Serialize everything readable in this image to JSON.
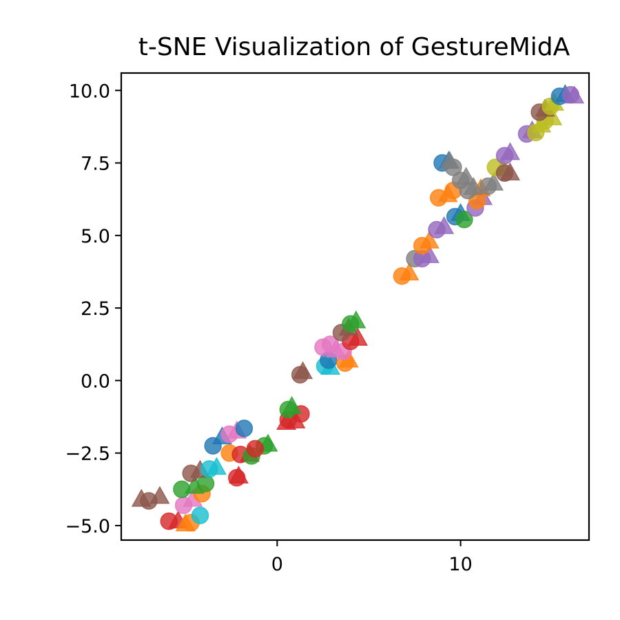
{
  "chart_data": {
    "type": "scatter",
    "title": "t-SNE Visualization of GestureMidA",
    "xlabel": "",
    "ylabel": "",
    "xlim": [
      -8.5,
      17.0
    ],
    "ylim": [
      -5.5,
      10.6
    ],
    "xticks": [
      {
        "value": 0,
        "label": "0"
      },
      {
        "value": 10,
        "label": "10"
      }
    ],
    "yticks": [
      {
        "value": -5.0,
        "label": "−5.0"
      },
      {
        "value": -2.5,
        "label": "−2.5"
      },
      {
        "value": 0.0,
        "label": "0.0"
      },
      {
        "value": 2.5,
        "label": "2.5"
      },
      {
        "value": 5.0,
        "label": "5.0"
      },
      {
        "value": 7.5,
        "label": "7.5"
      },
      {
        "value": 10.0,
        "label": "10.0"
      }
    ],
    "grid": false,
    "legend": "none",
    "marker_alpha": 0.8,
    "palette": [
      "#1f77b4",
      "#ff7f0e",
      "#2ca02c",
      "#d62728",
      "#9467bd",
      "#8c564b",
      "#e377c2",
      "#7f7f7f",
      "#bcbd22",
      "#17becf"
    ],
    "points": [
      {
        "x": -7.4,
        "y": -4.1,
        "c": 5,
        "m": "tri"
      },
      {
        "x": -7.0,
        "y": -4.15,
        "c": 5,
        "m": "circle"
      },
      {
        "x": -6.4,
        "y": -4.0,
        "c": 5,
        "m": "tri"
      },
      {
        "x": -5.4,
        "y": -4.85,
        "c": 3,
        "m": "tri"
      },
      {
        "x": -5.9,
        "y": -4.85,
        "c": 3,
        "m": "circle"
      },
      {
        "x": -5.0,
        "y": -4.95,
        "c": 1,
        "m": "tri"
      },
      {
        "x": -4.7,
        "y": -4.9,
        "c": 1,
        "m": "circle"
      },
      {
        "x": -4.2,
        "y": -4.65,
        "c": 9,
        "m": "circle"
      },
      {
        "x": -5.1,
        "y": -4.3,
        "c": 6,
        "m": "circle"
      },
      {
        "x": -4.6,
        "y": -4.1,
        "c": 6,
        "m": "tri"
      },
      {
        "x": -4.1,
        "y": -3.9,
        "c": 1,
        "m": "circle"
      },
      {
        "x": -5.2,
        "y": -3.75,
        "c": 2,
        "m": "circle"
      },
      {
        "x": -4.5,
        "y": -3.65,
        "c": 2,
        "m": "tri"
      },
      {
        "x": -3.9,
        "y": -3.55,
        "c": 2,
        "m": "circle"
      },
      {
        "x": -4.7,
        "y": -3.2,
        "c": 5,
        "m": "circle"
      },
      {
        "x": -4.2,
        "y": -3.1,
        "c": 5,
        "m": "tri"
      },
      {
        "x": -3.7,
        "y": -3.05,
        "c": 9,
        "m": "circle"
      },
      {
        "x": -3.3,
        "y": -3.0,
        "c": 9,
        "m": "tri"
      },
      {
        "x": -2.2,
        "y": -3.35,
        "c": 3,
        "m": "circle"
      },
      {
        "x": -2.1,
        "y": -3.3,
        "c": 3,
        "m": "tri"
      },
      {
        "x": -2.6,
        "y": -2.5,
        "c": 1,
        "m": "circle"
      },
      {
        "x": -2.0,
        "y": -2.55,
        "c": 3,
        "m": "circle"
      },
      {
        "x": -1.5,
        "y": -2.55,
        "c": 3,
        "m": "tri"
      },
      {
        "x": -1.4,
        "y": -2.6,
        "c": 2,
        "m": "circle"
      },
      {
        "x": -0.7,
        "y": -2.25,
        "c": 2,
        "m": "circle"
      },
      {
        "x": -0.5,
        "y": -2.2,
        "c": 2,
        "m": "tri"
      },
      {
        "x": -1.2,
        "y": -2.35,
        "c": 3,
        "m": "circle"
      },
      {
        "x": -3.5,
        "y": -2.25,
        "c": 0,
        "m": "circle"
      },
      {
        "x": -3.0,
        "y": -1.95,
        "c": 0,
        "m": "tri"
      },
      {
        "x": -2.6,
        "y": -1.85,
        "c": 6,
        "m": "circle"
      },
      {
        "x": -2.2,
        "y": -1.75,
        "c": 6,
        "m": "tri"
      },
      {
        "x": -1.8,
        "y": -1.65,
        "c": 0,
        "m": "circle"
      },
      {
        "x": 0.5,
        "y": -1.45,
        "c": 3,
        "m": "tri"
      },
      {
        "x": 0.6,
        "y": -1.35,
        "c": 3,
        "m": "circle"
      },
      {
        "x": 1.0,
        "y": -1.4,
        "c": 3,
        "m": "tri"
      },
      {
        "x": 1.3,
        "y": -1.15,
        "c": 3,
        "m": "circle"
      },
      {
        "x": 0.6,
        "y": -1.0,
        "c": 2,
        "m": "circle"
      },
      {
        "x": 0.8,
        "y": -0.9,
        "c": 2,
        "m": "tri"
      },
      {
        "x": 1.25,
        "y": 0.2,
        "c": 5,
        "m": "circle"
      },
      {
        "x": 1.4,
        "y": 0.3,
        "c": 5,
        "m": "tri"
      },
      {
        "x": 2.6,
        "y": 0.5,
        "c": 9,
        "m": "circle"
      },
      {
        "x": 2.9,
        "y": 0.45,
        "c": 9,
        "m": "tri"
      },
      {
        "x": 2.8,
        "y": 0.7,
        "c": 0,
        "m": "circle"
      },
      {
        "x": 3.7,
        "y": 0.6,
        "c": 1,
        "m": "circle"
      },
      {
        "x": 3.9,
        "y": 0.7,
        "c": 1,
        "m": "tri"
      },
      {
        "x": 2.5,
        "y": 1.15,
        "c": 6,
        "m": "circle"
      },
      {
        "x": 2.9,
        "y": 1.25,
        "c": 6,
        "m": "circle"
      },
      {
        "x": 3.2,
        "y": 1.05,
        "c": 6,
        "m": "tri"
      },
      {
        "x": 3.6,
        "y": 1.0,
        "c": 6,
        "m": "circle"
      },
      {
        "x": 4.0,
        "y": 1.35,
        "c": 3,
        "m": "circle"
      },
      {
        "x": 4.4,
        "y": 1.45,
        "c": 3,
        "m": "tri"
      },
      {
        "x": 3.5,
        "y": 1.65,
        "c": 5,
        "m": "circle"
      },
      {
        "x": 3.9,
        "y": 1.8,
        "c": 5,
        "m": "tri"
      },
      {
        "x": 4.0,
        "y": 1.95,
        "c": 2,
        "m": "circle"
      },
      {
        "x": 4.3,
        "y": 2.05,
        "c": 2,
        "m": "tri"
      },
      {
        "x": 6.8,
        "y": 3.6,
        "c": 1,
        "m": "circle"
      },
      {
        "x": 7.2,
        "y": 3.7,
        "c": 1,
        "m": "tri"
      },
      {
        "x": 7.5,
        "y": 4.2,
        "c": 7,
        "m": "circle"
      },
      {
        "x": 7.9,
        "y": 4.2,
        "c": 4,
        "m": "circle"
      },
      {
        "x": 8.3,
        "y": 4.3,
        "c": 4,
        "m": "tri"
      },
      {
        "x": 7.9,
        "y": 4.65,
        "c": 1,
        "m": "circle"
      },
      {
        "x": 8.3,
        "y": 4.8,
        "c": 1,
        "m": "tri"
      },
      {
        "x": 8.7,
        "y": 5.2,
        "c": 4,
        "m": "circle"
      },
      {
        "x": 9.1,
        "y": 5.3,
        "c": 4,
        "m": "tri"
      },
      {
        "x": 9.7,
        "y": 5.65,
        "c": 0,
        "m": "circle"
      },
      {
        "x": 10.0,
        "y": 5.75,
        "c": 0,
        "m": "tri"
      },
      {
        "x": 10.2,
        "y": 5.55,
        "c": 2,
        "m": "circle"
      },
      {
        "x": 10.8,
        "y": 5.95,
        "c": 4,
        "m": "circle"
      },
      {
        "x": 11.2,
        "y": 6.3,
        "c": 4,
        "m": "tri"
      },
      {
        "x": 8.8,
        "y": 6.3,
        "c": 1,
        "m": "circle"
      },
      {
        "x": 9.3,
        "y": 6.4,
        "c": 1,
        "m": "tri"
      },
      {
        "x": 9.6,
        "y": 6.55,
        "c": 1,
        "m": "circle"
      },
      {
        "x": 10.9,
        "y": 6.2,
        "c": 1,
        "m": "circle"
      },
      {
        "x": 11.1,
        "y": 6.6,
        "c": 1,
        "m": "tri"
      },
      {
        "x": 10.4,
        "y": 6.55,
        "c": 7,
        "m": "circle"
      },
      {
        "x": 10.7,
        "y": 6.65,
        "c": 7,
        "m": "tri"
      },
      {
        "x": 11.5,
        "y": 6.7,
        "c": 7,
        "m": "circle"
      },
      {
        "x": 11.8,
        "y": 6.8,
        "c": 7,
        "m": "tri"
      },
      {
        "x": 10.0,
        "y": 6.9,
        "c": 7,
        "m": "circle"
      },
      {
        "x": 10.3,
        "y": 7.0,
        "c": 7,
        "m": "tri"
      },
      {
        "x": 9.0,
        "y": 7.5,
        "c": 0,
        "m": "circle"
      },
      {
        "x": 9.35,
        "y": 7.55,
        "c": 0,
        "m": "tri"
      },
      {
        "x": 9.6,
        "y": 7.35,
        "c": 7,
        "m": "circle"
      },
      {
        "x": 9.4,
        "y": 7.55,
        "c": 7,
        "m": "tri"
      },
      {
        "x": 11.9,
        "y": 7.35,
        "c": 8,
        "m": "circle"
      },
      {
        "x": 12.3,
        "y": 7.3,
        "c": 8,
        "m": "tri"
      },
      {
        "x": 12.4,
        "y": 7.15,
        "c": 5,
        "m": "circle"
      },
      {
        "x": 12.7,
        "y": 7.15,
        "c": 5,
        "m": "tri"
      },
      {
        "x": 12.4,
        "y": 7.75,
        "c": 4,
        "m": "circle"
      },
      {
        "x": 12.7,
        "y": 7.85,
        "c": 4,
        "m": "tri"
      },
      {
        "x": 13.6,
        "y": 8.5,
        "c": 4,
        "m": "circle"
      },
      {
        "x": 13.9,
        "y": 8.6,
        "c": 4,
        "m": "tri"
      },
      {
        "x": 14.1,
        "y": 8.55,
        "c": 8,
        "m": "circle"
      },
      {
        "x": 14.4,
        "y": 8.8,
        "c": 8,
        "m": "tri"
      },
      {
        "x": 14.6,
        "y": 8.95,
        "c": 8,
        "m": "circle"
      },
      {
        "x": 15.0,
        "y": 9.05,
        "c": 8,
        "m": "tri"
      },
      {
        "x": 14.3,
        "y": 9.25,
        "c": 5,
        "m": "circle"
      },
      {
        "x": 14.6,
        "y": 9.35,
        "c": 5,
        "m": "tri"
      },
      {
        "x": 14.9,
        "y": 9.45,
        "c": 8,
        "m": "circle"
      },
      {
        "x": 15.1,
        "y": 9.55,
        "c": 8,
        "m": "tri"
      },
      {
        "x": 15.4,
        "y": 9.8,
        "c": 0,
        "m": "circle"
      },
      {
        "x": 15.7,
        "y": 9.85,
        "c": 0,
        "m": "tri"
      },
      {
        "x": 16.0,
        "y": 9.85,
        "c": 4,
        "m": "circle"
      },
      {
        "x": 16.2,
        "y": 9.8,
        "c": 4,
        "m": "tri"
      }
    ]
  }
}
